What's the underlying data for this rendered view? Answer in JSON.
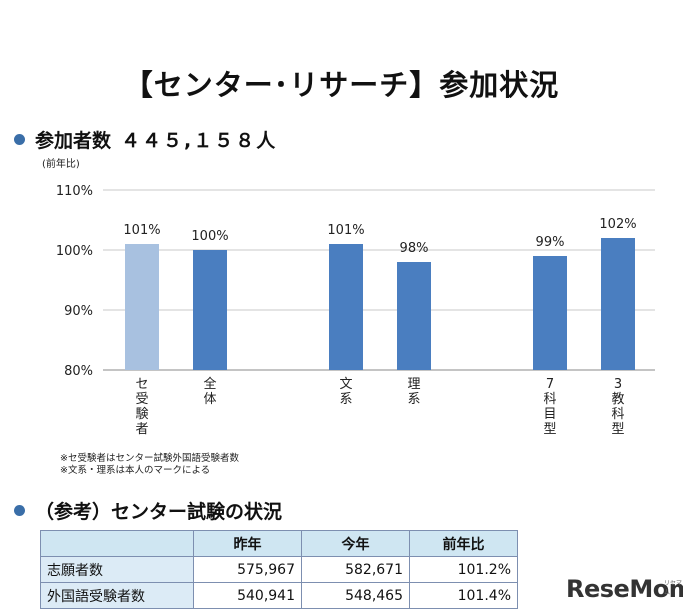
{
  "title": "【センター･リサーチ】参加状況",
  "section1": {
    "label": "参加者数",
    "value": "４４５,１５８人"
  },
  "y_axis_note": "(前年比)",
  "chart_data": {
    "type": "bar",
    "categories": [
      "セ受験者",
      "全体",
      "文系",
      "理系",
      "7科目型",
      "3教科型"
    ],
    "values": [
      101,
      100,
      101,
      98,
      99,
      102
    ],
    "value_labels": [
      "101%",
      "100%",
      "101%",
      "98%",
      "99%",
      "102%"
    ],
    "tick_labels": [
      "110%",
      "100%",
      "90%",
      "80%"
    ],
    "ylim": [
      80,
      110
    ],
    "colors": [
      "#a8c1e0",
      "#4a7ec0",
      "#4a7ec0",
      "#4a7ec0",
      "#4a7ec0",
      "#4a7ec0"
    ],
    "title": "",
    "xlabel": "",
    "ylabel": "(前年比)"
  },
  "notes": [
    "※セ受験者はセンター試験外国語受験者数",
    "※文系・理系は本人のマークによる"
  ],
  "section2": {
    "label": "（参考）センター試験の状況"
  },
  "table": {
    "headers": [
      "",
      "昨年",
      "今年",
      "前年比"
    ],
    "rows": [
      [
        "志願者数",
        "575,967",
        "582,671",
        "101.2%"
      ],
      [
        "外国語受験者数",
        "540,941",
        "548,465",
        "101.4%"
      ]
    ]
  },
  "brand": {
    "name": "ReseMom",
    "sub": "リセマム"
  },
  "colors": {
    "accent": "#3a6ea8",
    "bar_light": "#a8c1e0",
    "bar": "#4a7ec0",
    "table_header": "#cfe6f2"
  }
}
